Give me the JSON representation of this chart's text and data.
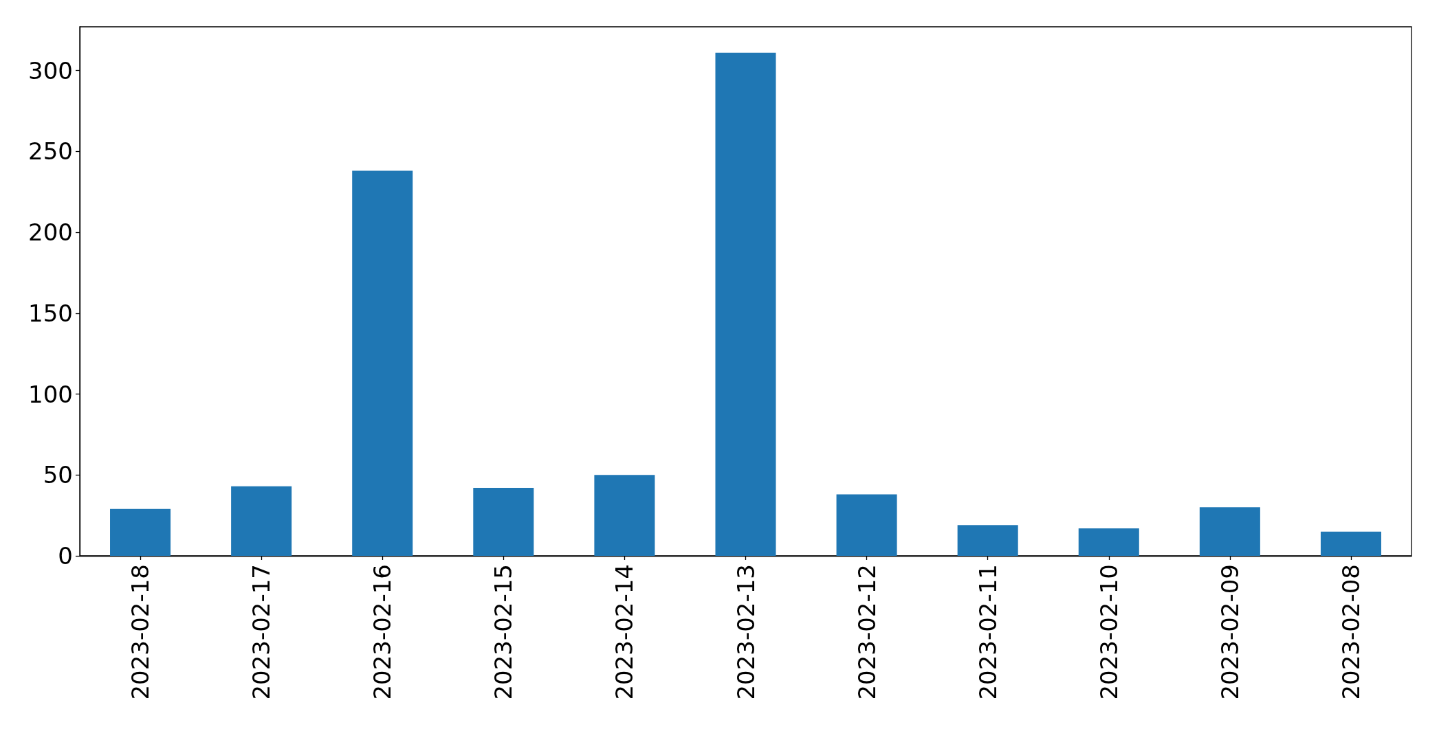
{
  "chart_data": {
    "type": "bar",
    "categories": [
      "2023-02-18",
      "2023-02-17",
      "2023-02-16",
      "2023-02-15",
      "2023-02-14",
      "2023-02-13",
      "2023-02-12",
      "2023-02-11",
      "2023-02-10",
      "2023-02-09",
      "2023-02-08"
    ],
    "values": [
      29,
      43,
      238,
      42,
      50,
      311,
      38,
      19,
      17,
      30,
      15
    ],
    "color": "#1f77b4",
    "ylim": [
      0,
      327
    ],
    "yticks": [
      0,
      50,
      100,
      150,
      200,
      250,
      300
    ]
  }
}
